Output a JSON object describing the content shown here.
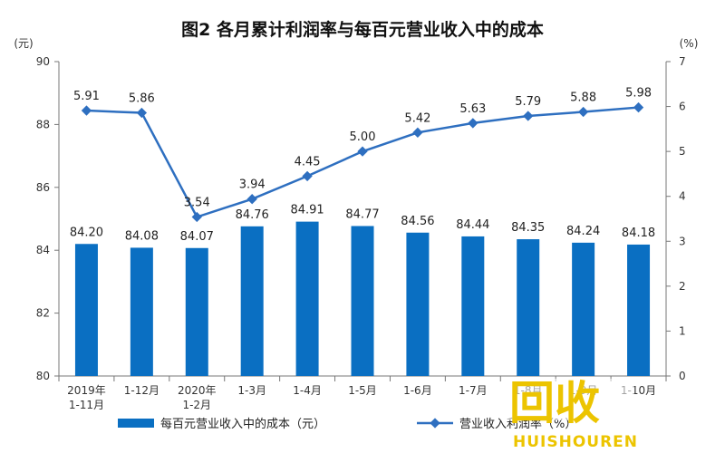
{
  "chart_data": {
    "type": "bar",
    "title": "图2 各月累计利润率与每百元营业收入中的成本",
    "left_unit": "(元)",
    "right_unit": "(%)",
    "categories": [
      [
        "2019年",
        "1-11月"
      ],
      [
        "1-12月"
      ],
      [
        "2020年",
        "1-2月"
      ],
      [
        "1-3月"
      ],
      [
        "1-4月"
      ],
      [
        "1-5月"
      ],
      [
        "1-6月"
      ],
      [
        "1-7月"
      ],
      [
        "1-8月"
      ],
      [
        "1-9月"
      ],
      [
        "1-10月"
      ]
    ],
    "ylim_left": [
      80,
      90
    ],
    "ylim_right": [
      0,
      7
    ],
    "y_ticks_left": [
      "80",
      "82",
      "84",
      "86",
      "88",
      "90"
    ],
    "y_ticks_right": [
      "0",
      "1",
      "2",
      "3",
      "4",
      "5",
      "6",
      "7"
    ],
    "series": [
      {
        "name": "每百元营业收入中的成本（元）",
        "kind": "bar",
        "axis": "left",
        "color": "#0a6fc2",
        "values": [
          84.2,
          84.08,
          84.07,
          84.76,
          84.91,
          84.77,
          84.56,
          84.44,
          84.35,
          84.24,
          84.18
        ],
        "labels": [
          "84.20",
          "84.08",
          "84.07",
          "84.76",
          "84.91",
          "84.77",
          "84.56",
          "84.44",
          "84.35",
          "84.24",
          "84.18"
        ]
      },
      {
        "name": "营业收入利润率（%）",
        "kind": "line",
        "axis": "right",
        "color": "#2e6fc0",
        "values": [
          5.91,
          5.86,
          3.54,
          3.94,
          4.45,
          5.0,
          5.42,
          5.63,
          5.79,
          5.88,
          5.98
        ],
        "labels": [
          "5.91",
          "5.86",
          "3.54",
          "3.94",
          "4.45",
          "5.00",
          "5.42",
          "5.63",
          "5.79",
          "5.88",
          "5.98"
        ]
      }
    ],
    "legend": "bottom"
  },
  "watermark": {
    "main": "回收",
    "sub": "HUISHOUREN",
    "color": "#ecc400"
  }
}
